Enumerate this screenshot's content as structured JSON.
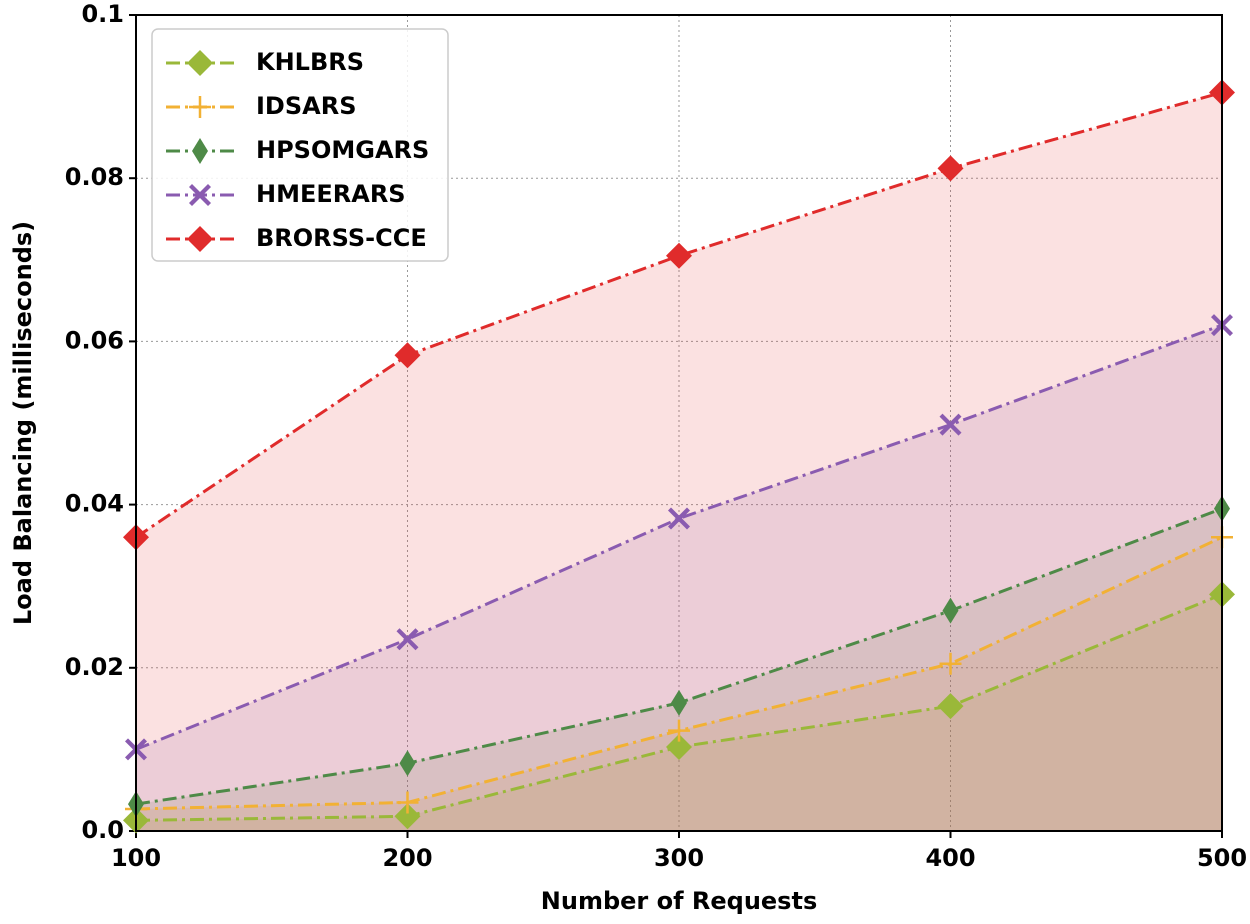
{
  "chart_data": {
    "type": "line",
    "x_label": "Number of Requests",
    "y_label": "Load Balancing (milliseconds)",
    "x": [
      100,
      200,
      300,
      400,
      500
    ],
    "series": [
      {
        "name": "KHLBRS",
        "color": "#9ab839",
        "marker": "diamond",
        "values": [
          0.0013,
          0.0018,
          0.0103,
          0.0153,
          0.029
        ]
      },
      {
        "name": "IDSARS",
        "color": "#f2b134",
        "marker": "plus",
        "values": [
          0.0027,
          0.0035,
          0.0123,
          0.0205,
          0.036
        ]
      },
      {
        "name": "HPSOMGARS",
        "color": "#4e8a47",
        "marker": "thin_diamond",
        "values": [
          0.0033,
          0.0083,
          0.0157,
          0.027,
          0.0395
        ]
      },
      {
        "name": "HMEERARS",
        "color": "#8a5bb0",
        "marker": "x",
        "values": [
          0.01,
          0.0235,
          0.0383,
          0.0498,
          0.062
        ]
      },
      {
        "name": "BRORSS-CCE",
        "color": "#e02b2b",
        "marker": "diamond",
        "values": [
          0.036,
          0.0583,
          0.0705,
          0.0812,
          0.0905
        ]
      }
    ],
    "xlim": [
      100,
      500
    ],
    "xticks": [
      100,
      200,
      300,
      400,
      500
    ],
    "ylim": [
      0,
      0.1
    ],
    "yticks": [
      {
        "value": 0,
        "label": "0.0"
      },
      0.02,
      0.04,
      0.06,
      0.08,
      0.1
    ],
    "grid": true,
    "fill_area": true,
    "legend": "upper left"
  }
}
